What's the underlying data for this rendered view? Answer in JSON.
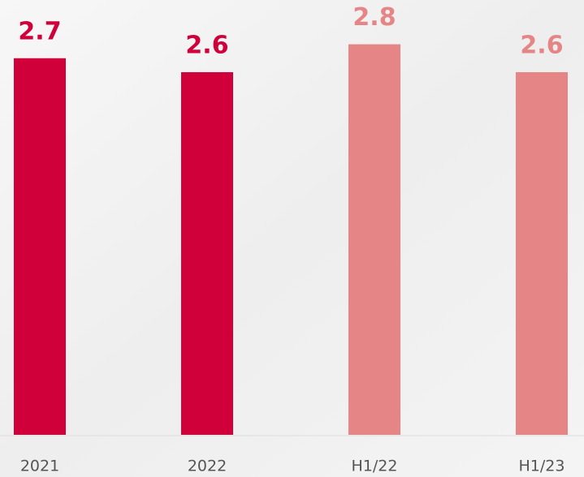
{
  "chart_data": {
    "type": "bar",
    "categories": [
      "2021",
      "2022",
      "H1/22",
      "H1/23"
    ],
    "values": [
      2.7,
      2.6,
      2.8,
      2.6
    ],
    "colors": [
      "#d0003a",
      "#d0003a",
      "#e58585",
      "#e58585"
    ],
    "ylim": [
      0,
      3.1
    ]
  }
}
